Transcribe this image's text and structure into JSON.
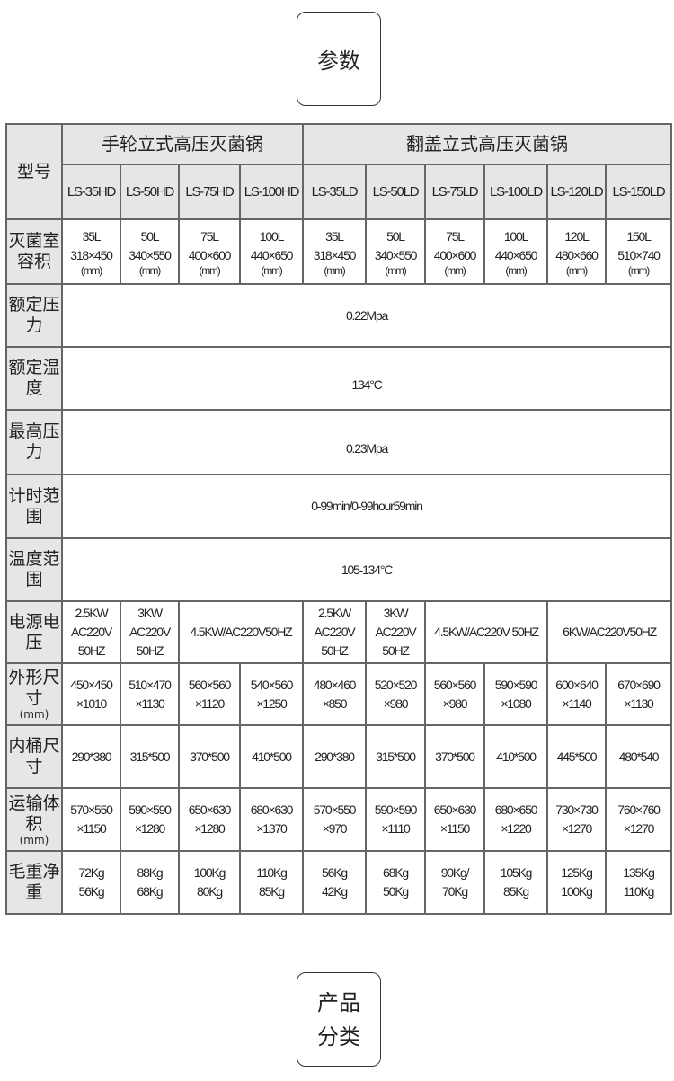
{
  "top_badge": "参数",
  "bottom_badge": [
    "产品",
    "分类"
  ],
  "table": {
    "model_label": "型号",
    "groups": [
      "手轮立式高压灭菌锅",
      "翻盖立式高压灭菌锅"
    ],
    "models": [
      "LS-35HD",
      "LS-50HD",
      "LS-75HD",
      "LS-100HD",
      "LS-35LD",
      "LS-50LD",
      "LS-75LD",
      "LS-100LD",
      "LS-120LD",
      "LS-150LD"
    ],
    "chamber": {
      "label": "灭菌室容积",
      "volumes": [
        "35L",
        "50L",
        "75L",
        "100L",
        "35L",
        "50L",
        "75L",
        "100L",
        "120L",
        "150L"
      ],
      "sizes": [
        "318×450",
        "340×550",
        "400×600",
        "440×650",
        "318×450",
        "340×550",
        "400×600",
        "440×650",
        "480×660",
        "510×740"
      ],
      "unit": "(mm)"
    },
    "rated_pressure": {
      "label": "额定压力",
      "value": "0.22Mpa"
    },
    "rated_temp": {
      "label": "额定温度",
      "value": "134°C"
    },
    "max_pressure": {
      "label": "最高压力",
      "value": "0.23Mpa"
    },
    "timer": {
      "label": "计时范围",
      "value": "0-99min/0-99hour59min"
    },
    "temp_range": {
      "label": "温度范围",
      "value": "105-134°C"
    },
    "power": {
      "label": "电源电压",
      "cells": [
        [
          "2.5KW",
          "AC220V",
          "50HZ"
        ],
        [
          "3KW",
          "AC220V",
          "50HZ"
        ],
        [
          "4.5KW/AC220V50HZ"
        ],
        [
          "2.5KW",
          "AC220V",
          "50HZ"
        ],
        [
          "3KW",
          "AC220V",
          "50HZ"
        ],
        [
          "4.5KW/AC220V 50HZ"
        ],
        [
          "6KW/AC220V50HZ"
        ]
      ]
    },
    "outer": {
      "label": "外形尺寸",
      "unit": "(mm)",
      "cells": [
        [
          "450×450",
          "×1010"
        ],
        [
          "510×470",
          "×1130"
        ],
        [
          "560×560",
          "×1120"
        ],
        [
          "540×560",
          "×1250"
        ],
        [
          "480×460",
          "×850"
        ],
        [
          "520×520",
          "×980"
        ],
        [
          "560×560",
          "×980"
        ],
        [
          "590×590",
          "×1080"
        ],
        [
          "600×640",
          "×1140"
        ],
        [
          "670×690",
          "×1130"
        ]
      ]
    },
    "inner": {
      "label": "内桶尺寸",
      "cells": [
        "290*380",
        "315*500",
        "370*500",
        "410*500",
        "290*380",
        "315*500",
        "370*500",
        "410*500",
        "445*500",
        "480*540"
      ]
    },
    "shipping": {
      "label": "运输体积",
      "unit": "(mm)",
      "cells": [
        [
          "570×550",
          "×1150"
        ],
        [
          "590×590",
          "×1280"
        ],
        [
          "650×630",
          "×1280"
        ],
        [
          "680×630",
          "×1370"
        ],
        [
          "570×550",
          "×970"
        ],
        [
          "590×590",
          "×1110"
        ],
        [
          "650×630",
          "×1150"
        ],
        [
          "680×650",
          "×1220"
        ],
        [
          "730×730",
          "×1270"
        ],
        [
          "760×760",
          "×1270"
        ]
      ]
    },
    "weight": {
      "label": "毛重净重",
      "cells": [
        [
          "72Kg",
          "56Kg"
        ],
        [
          "88Kg",
          "68Kg"
        ],
        [
          "100Kg",
          "80Kg"
        ],
        [
          "110Kg",
          "85Kg"
        ],
        [
          "56Kg",
          "42Kg"
        ],
        [
          "68Kg",
          "50Kg"
        ],
        [
          "90Kg/",
          "70Kg"
        ],
        [
          "105Kg",
          "85Kg"
        ],
        [
          "125Kg",
          "100Kg"
        ],
        [
          "135Kg",
          "110Kg"
        ]
      ]
    }
  }
}
